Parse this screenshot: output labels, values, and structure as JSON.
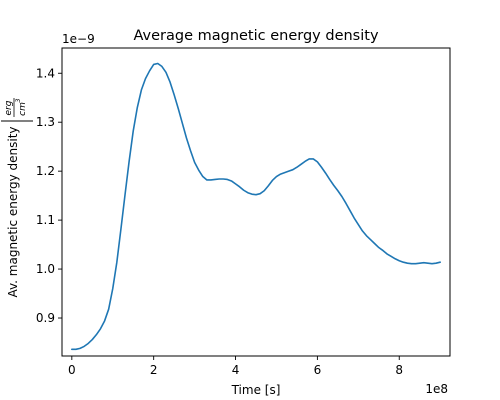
{
  "chart_data": {
    "type": "line",
    "title": "Average magnetic energy density",
    "xlabel": "Time [s]",
    "ylabel_text": "Av. magnetic energy density",
    "ylabel_unit_num": "erg",
    "ylabel_unit_den": "cm",
    "ylabel_unit_den_exp": "3",
    "x_offset_label": "1e8",
    "y_offset_label": "1e−9",
    "xlim": [
      -0.24,
      9.24
    ],
    "ylim": [
      0.8224,
      1.4516
    ],
    "x_ticks": [
      0,
      2,
      4,
      6,
      8
    ],
    "x_tick_labels": [
      "0",
      "2",
      "4",
      "6",
      "8"
    ],
    "y_ticks": [
      0.9,
      1.0,
      1.1,
      1.2,
      1.3,
      1.4
    ],
    "y_tick_labels": [
      "0.9",
      "1.0",
      "1.1",
      "1.2",
      "1.3",
      "1.4"
    ],
    "grid": false,
    "line_color": "#1f77b4",
    "series": [
      {
        "x": [
          0,
          0.1,
          0.2,
          0.3,
          0.4,
          0.5,
          0.6,
          0.7,
          0.8,
          0.9,
          1.0,
          1.1,
          1.2,
          1.3,
          1.4,
          1.5,
          1.6,
          1.7,
          1.8,
          1.9,
          2.0,
          2.1,
          2.2,
          2.3,
          2.4,
          2.5,
          2.6,
          2.7,
          2.8,
          2.9,
          3.0,
          3.1,
          3.2,
          3.3,
          3.4,
          3.5,
          3.6,
          3.7,
          3.8,
          3.9,
          4.0,
          4.1,
          4.2,
          4.3,
          4.4,
          4.5,
          4.6,
          4.7,
          4.8,
          4.9,
          5.0,
          5.1,
          5.2,
          5.3,
          5.4,
          5.5,
          5.6,
          5.7,
          5.8,
          5.9,
          6.0,
          6.1,
          6.2,
          6.3,
          6.4,
          6.5,
          6.6,
          6.7,
          6.8,
          6.9,
          7.0,
          7.1,
          7.2,
          7.3,
          7.4,
          7.5,
          7.6,
          7.7,
          7.8,
          7.9,
          8.0,
          8.1,
          8.2,
          8.3,
          8.4,
          8.5,
          8.6,
          8.7,
          8.8,
          8.9,
          9.0
        ],
        "y": [
          0.836,
          0.836,
          0.838,
          0.842,
          0.848,
          0.856,
          0.866,
          0.878,
          0.894,
          0.918,
          0.96,
          1.014,
          1.082,
          1.152,
          1.22,
          1.282,
          1.33,
          1.366,
          1.389,
          1.405,
          1.418,
          1.42,
          1.414,
          1.402,
          1.382,
          1.356,
          1.328,
          1.298,
          1.268,
          1.242,
          1.218,
          1.202,
          1.189,
          1.182,
          1.182,
          1.183,
          1.184,
          1.184,
          1.183,
          1.18,
          1.174,
          1.168,
          1.161,
          1.156,
          1.153,
          1.152,
          1.154,
          1.16,
          1.17,
          1.181,
          1.189,
          1.194,
          1.197,
          1.2,
          1.203,
          1.208,
          1.214,
          1.22,
          1.225,
          1.225,
          1.219,
          1.208,
          1.196,
          1.183,
          1.171,
          1.16,
          1.148,
          1.134,
          1.119,
          1.104,
          1.091,
          1.078,
          1.068,
          1.06,
          1.052,
          1.044,
          1.038,
          1.031,
          1.026,
          1.021,
          1.017,
          1.014,
          1.012,
          1.011,
          1.011,
          1.012,
          1.013,
          1.012,
          1.011,
          1.012,
          1.014
        ]
      }
    ]
  }
}
